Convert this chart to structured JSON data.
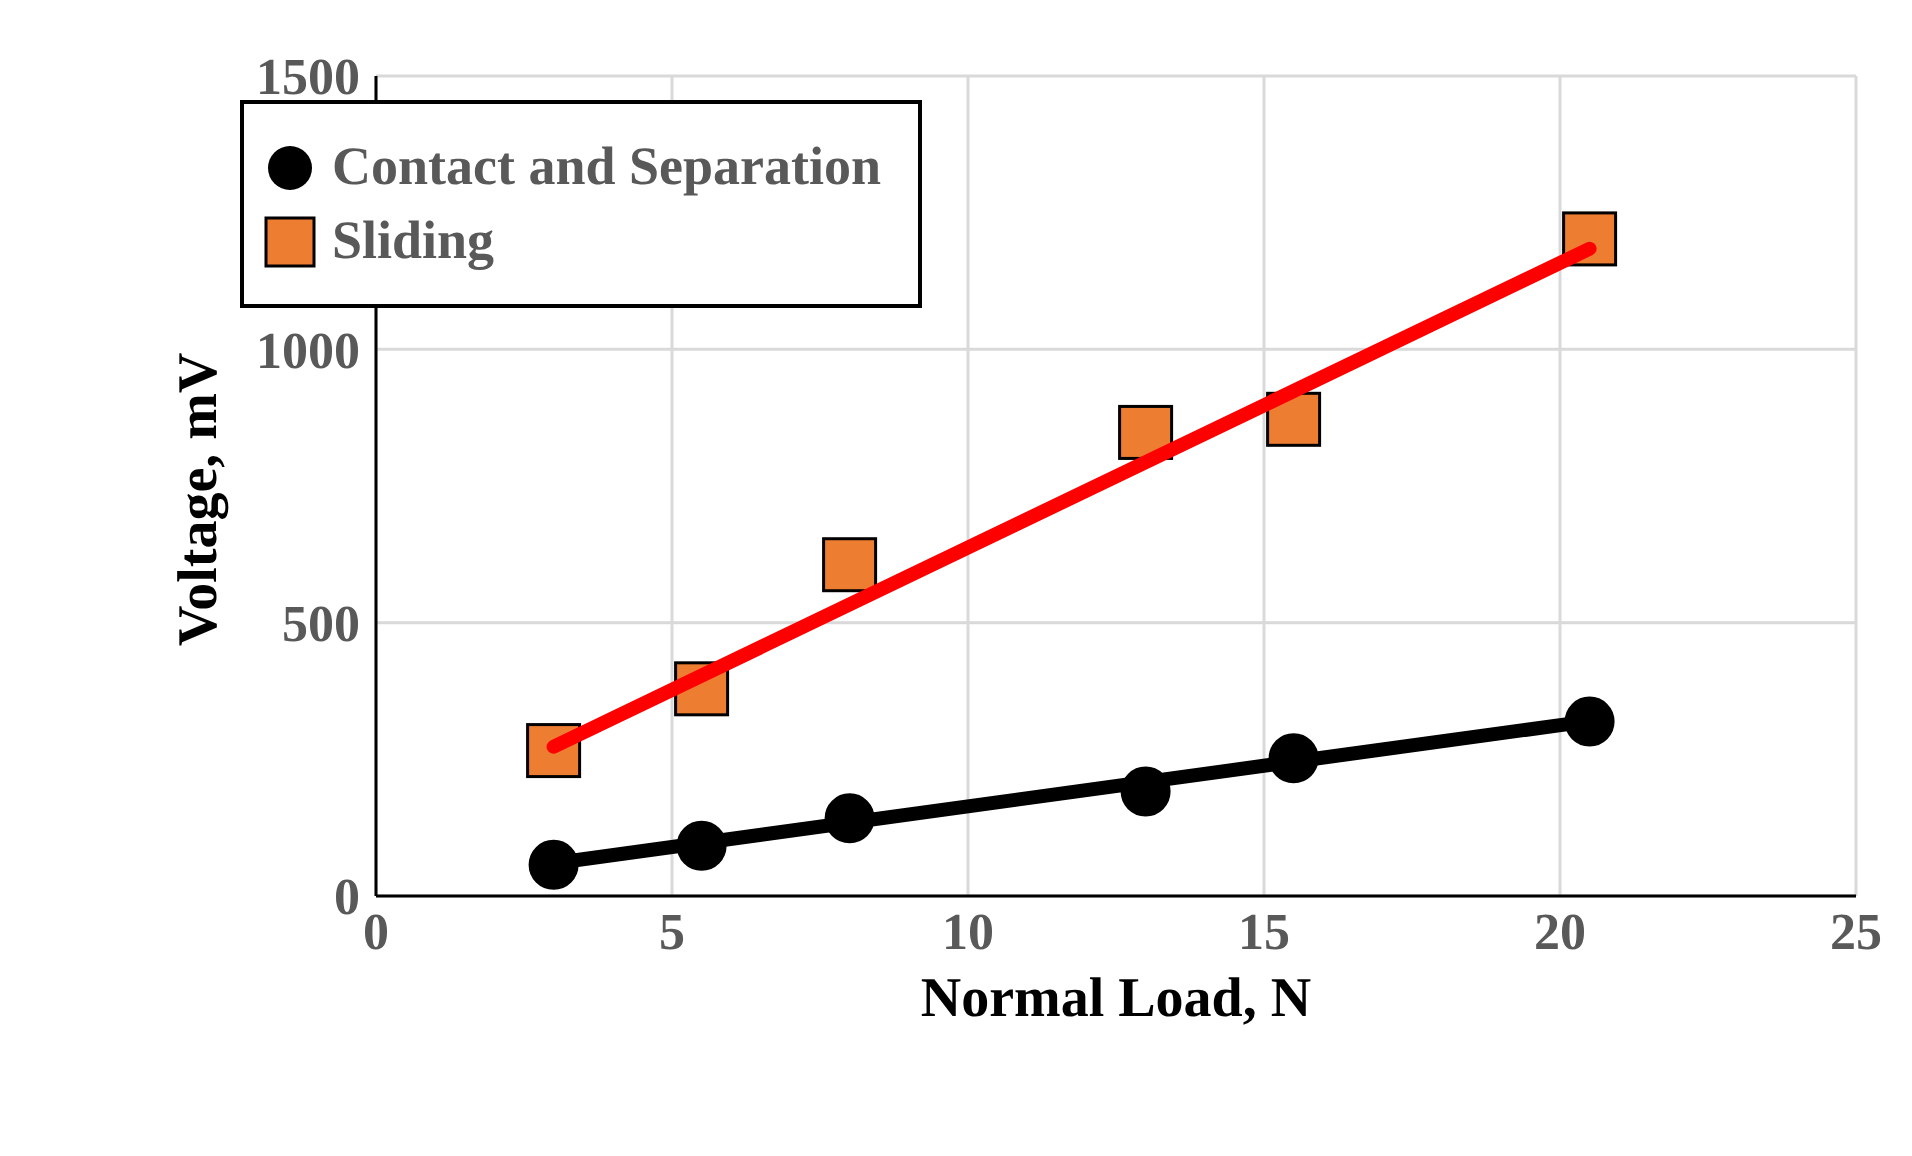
{
  "chart_data": {
    "type": "scatter",
    "xlabel": "Normal Load, N",
    "ylabel": "Voltage, mV",
    "xlim": [
      0,
      25
    ],
    "xticks": [
      0,
      5,
      10,
      15,
      20,
      25
    ],
    "ylim": [
      0,
      1500
    ],
    "yticks": [
      0,
      500,
      1000,
      1500
    ],
    "grid": true,
    "legend": "top left",
    "series": [
      {
        "name": "Contact and Separation",
        "marker": "circle",
        "color": "#000000",
        "x": [
          3,
          5.5,
          8,
          13,
          15.5,
          20.5
        ],
        "values": [
          57,
          92,
          142,
          191,
          252,
          319
        ]
      },
      {
        "name": "Sliding",
        "marker": "square",
        "color": "#ed7d31",
        "x": [
          3,
          5.5,
          8,
          13,
          15.5,
          20.5
        ],
        "values": [
          266,
          379,
          606,
          848,
          872,
          1202
        ]
      },
      {
        "type": "line",
        "color": "#000000",
        "x": [
          3,
          20.5
        ],
        "values": [
          60,
          320
        ]
      },
      {
        "type": "line",
        "color": "#ff0000",
        "x": [
          3,
          20.5
        ],
        "values": [
          273,
          1184
        ]
      }
    ]
  }
}
